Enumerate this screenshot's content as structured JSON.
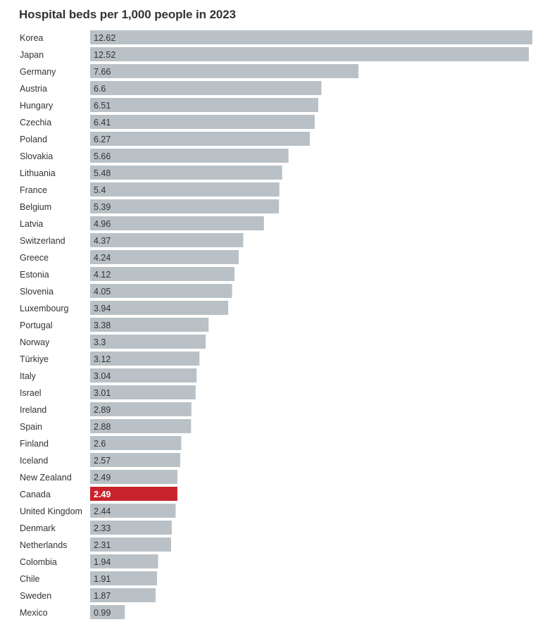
{
  "chart_data": {
    "type": "bar",
    "orientation": "horizontal",
    "title": "Hospital beds per 1,000 people in 2023",
    "xlabel": "",
    "ylabel": "",
    "xlim": [
      0,
      12.62
    ],
    "grid": false,
    "categories": [
      "Korea",
      "Japan",
      "Germany",
      "Austria",
      "Hungary",
      "Czechia",
      "Poland",
      "Slovakia",
      "Lithuania",
      "France",
      "Belgium",
      "Latvia",
      "Switzerland",
      "Greece",
      "Estonia",
      "Slovenia",
      "Luxembourg",
      "Portugal",
      "Norway",
      "Türkiye",
      "Italy",
      "Israel",
      "Ireland",
      "Spain",
      "Finland",
      "Iceland",
      "New Zealand",
      "Canada",
      "United Kingdom",
      "Denmark",
      "Netherlands",
      "Colombia",
      "Chile",
      "Sweden",
      "Mexico"
    ],
    "values": [
      12.62,
      12.52,
      7.66,
      6.6,
      6.51,
      6.41,
      6.27,
      5.66,
      5.48,
      5.4,
      5.39,
      4.96,
      4.37,
      4.24,
      4.12,
      4.05,
      3.94,
      3.38,
      3.3,
      3.12,
      3.04,
      3.01,
      2.89,
      2.88,
      2.6,
      2.57,
      2.49,
      2.49,
      2.44,
      2.33,
      2.31,
      1.94,
      1.91,
      1.87,
      0.99
    ],
    "labels": [
      "12.62",
      "12.52",
      "7.66",
      "6.6",
      "6.51",
      "6.41",
      "6.27",
      "5.66",
      "5.48",
      "5.4",
      "5.39",
      "4.96",
      "4.37",
      "4.24",
      "4.12",
      "4.05",
      "3.94",
      "3.38",
      "3.3",
      "3.12",
      "3.04",
      "3.01",
      "2.89",
      "2.88",
      "2.6",
      "2.57",
      "2.49",
      "2.49",
      "2.44",
      "2.33",
      "2.31",
      "1.94",
      "1.91",
      "1.87",
      "0.99"
    ],
    "highlight": "Canada",
    "colors": {
      "bar": "#b9c1c6",
      "highlight": "#c8232c",
      "label": "#333333",
      "highlight_label": "#ffffff"
    }
  }
}
